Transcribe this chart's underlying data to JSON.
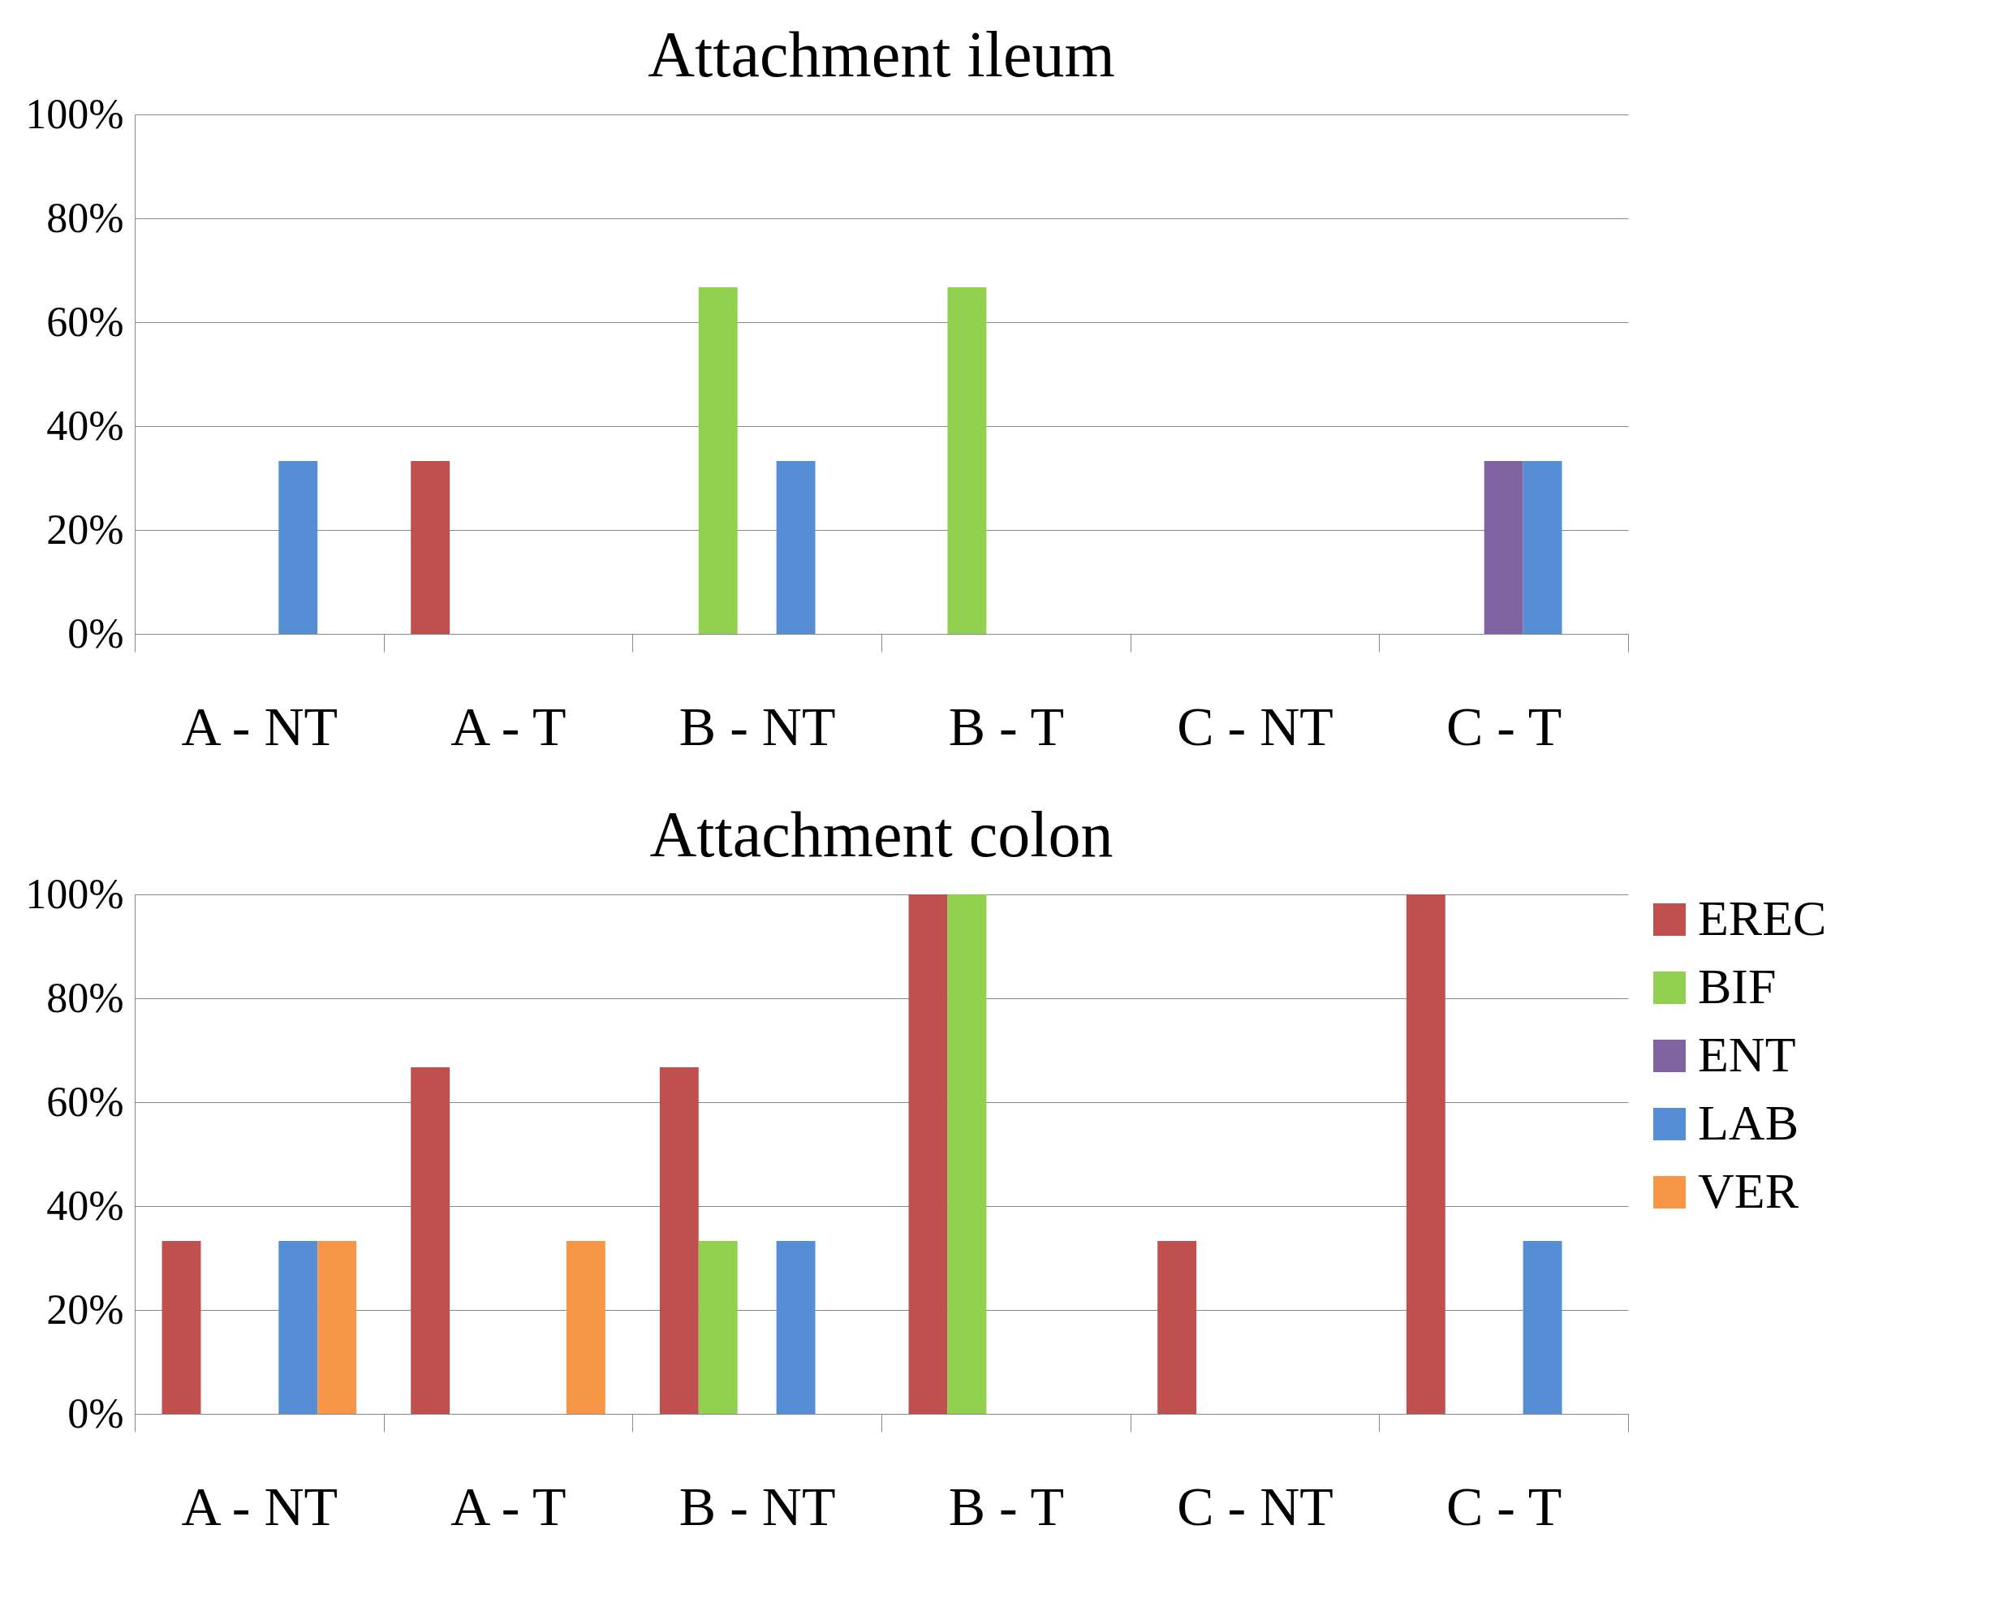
{
  "chart_data": [
    {
      "type": "bar",
      "title": "Attachment ileum",
      "categories": [
        "A - NT",
        "A - T",
        "B - NT",
        "B - T",
        "C - NT",
        "C - T"
      ],
      "series": [
        {
          "color": "#c0504d",
          "values": [
            0,
            33.3,
            0,
            0,
            0,
            0
          ]
        },
        {
          "color": "#92d050",
          "values": [
            0,
            0,
            66.7,
            66.7,
            0,
            0
          ]
        },
        {
          "color": "#8064a2",
          "values": [
            0,
            0,
            0,
            0,
            0,
            33.3
          ]
        },
        {
          "color": "#558ed5",
          "values": [
            33.3,
            0,
            33.3,
            0,
            0,
            33.3
          ]
        },
        {
          "color": "#f79646",
          "values": [
            0,
            0,
            0,
            0,
            0,
            0
          ]
        }
      ],
      "ylim": [
        0,
        100
      ],
      "yticks": [
        {
          "value": 0,
          "label": "0%"
        },
        {
          "value": 20,
          "label": "20%"
        },
        {
          "value": 40,
          "label": "40%"
        },
        {
          "value": 60,
          "label": "60%"
        },
        {
          "value": 80,
          "label": "80%"
        },
        {
          "value": 100,
          "label": "100%"
        }
      ],
      "grid": "y",
      "legend": false
    },
    {
      "type": "bar",
      "title": "Attachment colon",
      "categories": [
        "A - NT",
        "A - T",
        "B - NT",
        "B - T",
        "C - NT",
        "C - T"
      ],
      "series": [
        {
          "name": "EREC",
          "color": "#c0504d",
          "values": [
            33.3,
            66.7,
            66.7,
            100,
            33.3,
            100
          ]
        },
        {
          "name": "BIF",
          "color": "#92d050",
          "values": [
            0,
            0,
            33.3,
            100,
            0,
            0
          ]
        },
        {
          "name": "ENT",
          "color": "#8064a2",
          "values": [
            0,
            0,
            0,
            0,
            0,
            0
          ]
        },
        {
          "name": "LAB",
          "color": "#558ed5",
          "values": [
            33.3,
            0,
            33.3,
            0,
            0,
            33.3
          ]
        },
        {
          "name": "VER",
          "color": "#f79646",
          "values": [
            33.3,
            33.3,
            0,
            0,
            0,
            0
          ]
        }
      ],
      "ylim": [
        0,
        100
      ],
      "yticks": [
        {
          "value": 0,
          "label": "0%"
        },
        {
          "value": 20,
          "label": "20%"
        },
        {
          "value": 40,
          "label": "40%"
        },
        {
          "value": 60,
          "label": "60%"
        },
        {
          "value": 80,
          "label": "80%"
        },
        {
          "value": 100,
          "label": "100%"
        }
      ],
      "grid": "y",
      "legend": "right"
    }
  ]
}
